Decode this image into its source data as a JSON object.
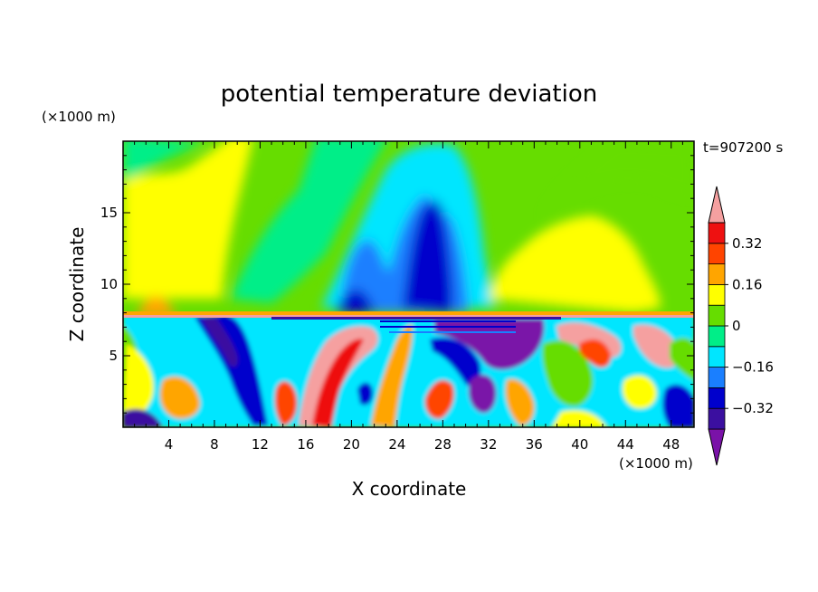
{
  "chart_data": {
    "type": "heatmap",
    "title": "potential temperature deviation",
    "xlabel": "X coordinate",
    "ylabel": "Z coordinate",
    "x_unit": "(×1000 m)",
    "y_unit": "(×1000 m)",
    "time_label": "t=907200 s",
    "xlim": [
      0,
      50
    ],
    "ylim": [
      0,
      20
    ],
    "x_ticks": [
      4,
      8,
      12,
      16,
      20,
      24,
      28,
      32,
      36,
      40,
      44,
      48
    ],
    "y_ticks": [
      5,
      10,
      15
    ],
    "colorbar": {
      "levels": [
        -0.4,
        -0.32,
        -0.24,
        -0.16,
        -0.08,
        0,
        0.08,
        0.16,
        0.24,
        0.32,
        0.4
      ],
      "tick_values": [
        0.32,
        0.16,
        0,
        -0.16,
        -0.32
      ],
      "tick_labels": [
        "0.32",
        "0.16",
        "0",
        "−0.16",
        "−0.32"
      ],
      "colors": [
        "#7a12a8",
        "#3b0fa0",
        "#0000cc",
        "#1a7fff",
        "#00e6ff",
        "#00ee88",
        "#66dd00",
        "#ffff00",
        "#ffa500",
        "#ff4400",
        "#ee1111",
        "#f5a0a0"
      ],
      "extend": "both"
    }
  }
}
